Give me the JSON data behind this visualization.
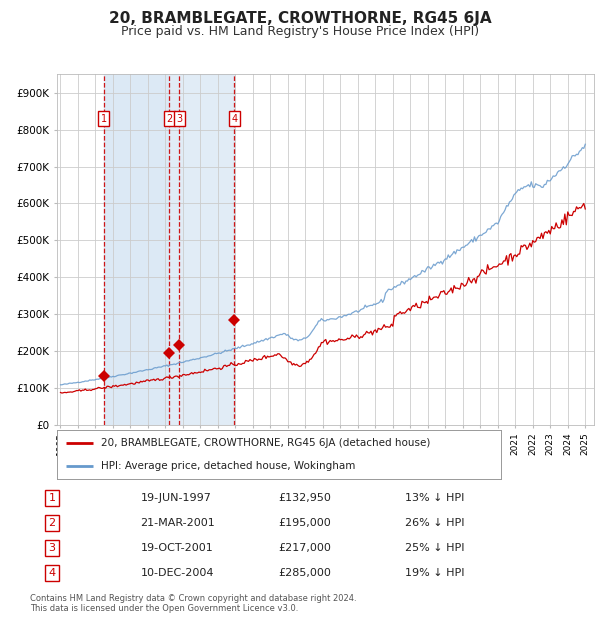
{
  "title": "20, BRAMBLEGATE, CROWTHORNE, RG45 6JA",
  "subtitle": "Price paid vs. HM Land Registry's House Price Index (HPI)",
  "ylim": [
    0,
    950000
  ],
  "xlim_start": 1994.8,
  "xlim_end": 2025.5,
  "yticks": [
    0,
    100000,
    200000,
    300000,
    400000,
    500000,
    600000,
    700000,
    800000,
    900000
  ],
  "ytick_labels": [
    "£0",
    "£100K",
    "£200K",
    "£300K",
    "£400K",
    "£500K",
    "£600K",
    "£700K",
    "£800K",
    "£900K"
  ],
  "xticks": [
    1995,
    1996,
    1997,
    1998,
    1999,
    2000,
    2001,
    2002,
    2003,
    2004,
    2005,
    2006,
    2007,
    2008,
    2009,
    2010,
    2011,
    2012,
    2013,
    2014,
    2015,
    2016,
    2017,
    2018,
    2019,
    2020,
    2021,
    2022,
    2023,
    2024,
    2025
  ],
  "sale_dates": [
    1997.464,
    2001.219,
    2001.803,
    2004.942
  ],
  "sale_prices": [
    132950,
    195000,
    217000,
    285000
  ],
  "sale_labels": [
    "1",
    "2",
    "3",
    "4"
  ],
  "shaded_color": "#dce9f5",
  "red_line_color": "#cc0000",
  "blue_line_color": "#6699cc",
  "marker_color": "#cc0000",
  "dashed_line_color": "#cc0000",
  "label_box_color": "#cc0000",
  "background_color": "#ffffff",
  "grid_color": "#cccccc",
  "title_fontsize": 11,
  "subtitle_fontsize": 9,
  "legend_label_red": "20, BRAMBLEGATE, CROWTHORNE, RG45 6JA (detached house)",
  "legend_label_blue": "HPI: Average price, detached house, Wokingham",
  "footer_text": "Contains HM Land Registry data © Crown copyright and database right 2024.\nThis data is licensed under the Open Government Licence v3.0.",
  "table_entries": [
    {
      "num": "1",
      "date": "19-JUN-1997",
      "price": "£132,950",
      "hpi": "13% ↓ HPI"
    },
    {
      "num": "2",
      "date": "21-MAR-2001",
      "price": "£195,000",
      "hpi": "26% ↓ HPI"
    },
    {
      "num": "3",
      "date": "19-OCT-2001",
      "price": "£217,000",
      "hpi": "25% ↓ HPI"
    },
    {
      "num": "4",
      "date": "10-DEC-2004",
      "price": "£285,000",
      "hpi": "19% ↓ HPI"
    }
  ]
}
